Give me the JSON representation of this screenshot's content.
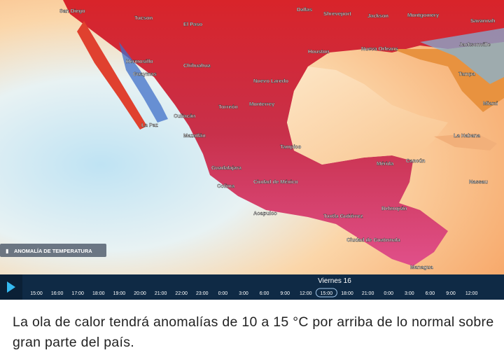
{
  "map": {
    "labels": [
      "San Diego",
      "Tucson",
      "El Paso",
      "Dallas",
      "Shreveport",
      "Jackson",
      "Montgomery",
      "Savannah",
      "Jacksonville",
      "Houston",
      "Nueva Orleans",
      "Tampa",
      "Miami",
      "Hermosillo",
      "Chihuahua",
      "Guaymas",
      "Nuevo Laredo",
      "Monterrey",
      "Torreón",
      "Culiacán",
      "La Paz",
      "Mazatlán",
      "Tampico",
      "Guadalajara",
      "Colima",
      "Ciudad de México",
      "Acapulco",
      "Mérida",
      "Cancún",
      "La Habana",
      "Nassau",
      "Belmopán",
      "Tuxtla Gutiérrez",
      "Ciudad de Guatemala",
      "Managua"
    ],
    "legend": "ANOMALÍA DE TEMPERATURA"
  },
  "timeline": {
    "day": "Viernes 16",
    "times": [
      "15:00",
      "16:00",
      "17:00",
      "18:00",
      "19:00",
      "20:00",
      "21:00",
      "22:00",
      "23:00",
      "0:00",
      "3:00",
      "6:00",
      "9:00",
      "12:00",
      "15:00",
      "18:00",
      "21:00",
      "0:00",
      "3:00",
      "6:00",
      "9:00",
      "12:00"
    ],
    "selected_index": 14
  },
  "caption": "La ola de calor tendrá anomalías de 10 a 15 °C por arriba de lo normal sobre gran parte del país."
}
